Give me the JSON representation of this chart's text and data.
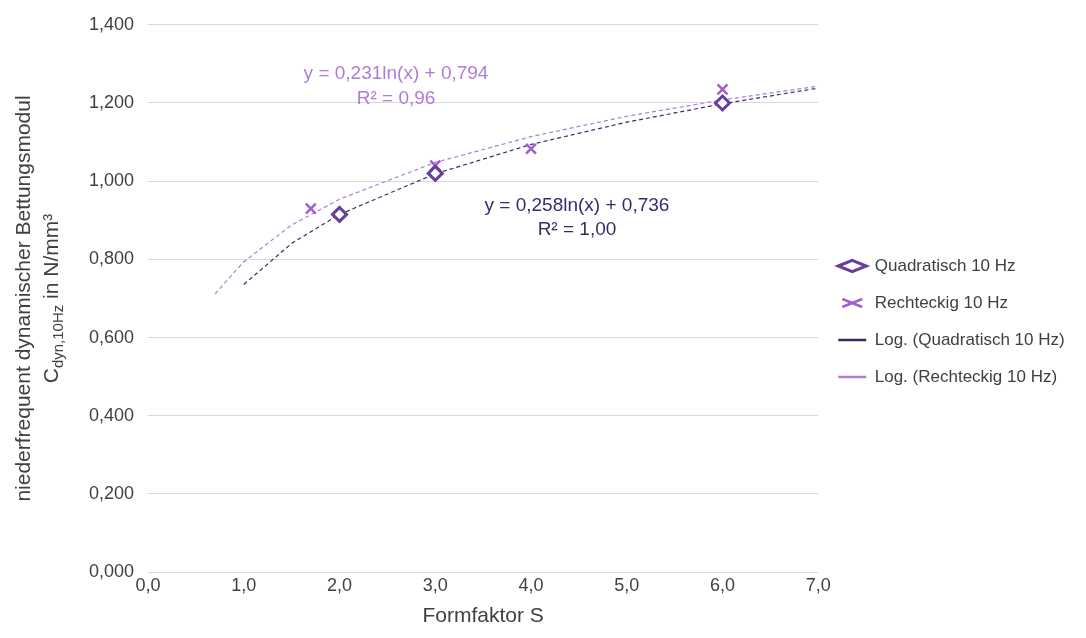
{
  "chart_data": {
    "type": "scatter",
    "xlabel": "Formfaktor S",
    "ylabel": "niederfrequent dynamischer Bettungsmodul\nC$_{dyn,10Hz}$ in N/mm³",
    "xlim": [
      0,
      7
    ],
    "xticks": [
      {
        "value": 0,
        "label": "0,0"
      },
      {
        "value": 1,
        "label": "1,0"
      },
      {
        "value": 2,
        "label": "2,0"
      },
      {
        "value": 3,
        "label": "3,0"
      },
      {
        "value": 4,
        "label": "4,0"
      },
      {
        "value": 5,
        "label": "5,0"
      },
      {
        "value": 6,
        "label": "6,0"
      },
      {
        "value": 7,
        "label": "7,0"
      }
    ],
    "ylim": [
      0,
      1.4
    ],
    "yticks": [
      {
        "value": 0,
        "label": "0,000"
      },
      {
        "value": 0.2,
        "label": "0,200"
      },
      {
        "value": 0.4,
        "label": "0,400"
      },
      {
        "value": 0.6,
        "label": "0,600"
      },
      {
        "value": 0.8,
        "label": "0,800"
      },
      {
        "value": 1,
        "label": "1,000"
      },
      {
        "value": 1.2,
        "label": "1,200"
      },
      {
        "value": 1.4,
        "label": "1,400"
      }
    ],
    "grid": "y",
    "legend": "right",
    "series": [
      {
        "name": "Quadratisch 10 Hz",
        "marker": "diamond",
        "color": "#6a3d9a",
        "x": [
          2,
          3,
          6
        ],
        "values": [
          0.915,
          1.02,
          1.2
        ]
      },
      {
        "name": "Rechteckig 10 Hz",
        "marker": "cross",
        "color": "#9e5fd0",
        "x": [
          1.7,
          3,
          4,
          6
        ],
        "values": [
          0.93,
          1.04,
          1.083,
          1.235
        ]
      },
      {
        "name": "Log. (Quadratisch 10 Hz)",
        "type": "line",
        "marker": "none",
        "line_style": "dashed",
        "color": "#3b2a6b",
        "x": [
          1,
          1.5,
          2,
          3,
          4,
          5,
          6,
          7
        ],
        "values": [
          0.736,
          0.841,
          0.915,
          1.019,
          1.094,
          1.151,
          1.198,
          1.238
        ]
      },
      {
        "name": "Log. (Rechteckig 10 Hz)",
        "type": "line",
        "marker": "none",
        "line_style": "dashed",
        "color": "#b07cd6",
        "x": [
          0.7,
          1,
          1.5,
          2,
          3,
          4,
          5,
          6,
          7
        ],
        "values": [
          0.712,
          0.794,
          0.888,
          0.954,
          1.048,
          1.114,
          1.166,
          1.208,
          1.243
        ]
      }
    ],
    "annotations": [
      "y = 0,231ln(x) + 0,794",
      "R² = 0,96",
      "y = 0,258ln(x) + 0,736",
      "R² = 1,00"
    ]
  }
}
